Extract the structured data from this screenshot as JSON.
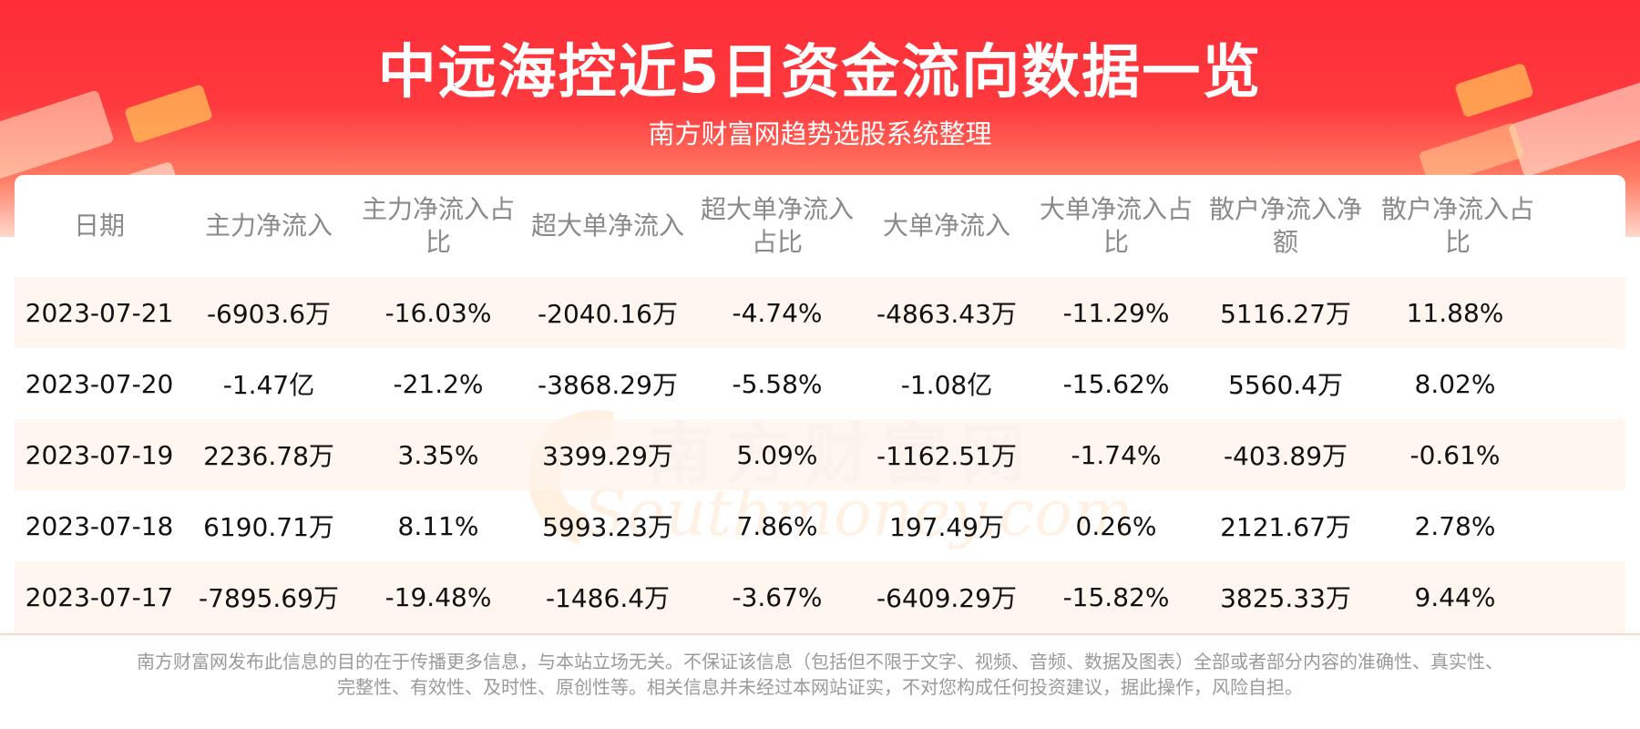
{
  "header": {
    "title": "中远海控近5日资金流向数据一览",
    "subtitle": "南方财富网趋势选股系统整理"
  },
  "watermark": {
    "cn": "南方财富网",
    "en": "Southmoney.com"
  },
  "table": {
    "columns": [
      "日期",
      "主力净流入",
      "主力净流入占比",
      "超大单净流入",
      "超大单净流入占比",
      "大单净流入",
      "大单净流入占比",
      "散户净流入净额",
      "散户净流入占比"
    ],
    "rows": [
      [
        "2023-07-21",
        "-6903.6万",
        "-16.03%",
        "-2040.16万",
        "-4.74%",
        "-4863.43万",
        "-11.29%",
        "5116.27万",
        "11.88%"
      ],
      [
        "2023-07-20",
        "-1.47亿",
        "-21.2%",
        "-3868.29万",
        "-5.58%",
        "-1.08亿",
        "-15.62%",
        "5560.4万",
        "8.02%"
      ],
      [
        "2023-07-19",
        "2236.78万",
        "3.35%",
        "3399.29万",
        "5.09%",
        "-1162.51万",
        "-1.74%",
        "-403.89万",
        "-0.61%"
      ],
      [
        "2023-07-18",
        "6190.71万",
        "8.11%",
        "5993.23万",
        "7.86%",
        "197.49万",
        "0.26%",
        "2121.67万",
        "2.78%"
      ],
      [
        "2023-07-17",
        "-7895.69万",
        "-19.48%",
        "-1486.4万",
        "-3.67%",
        "-6409.29万",
        "-15.82%",
        "3825.33万",
        "9.44%"
      ]
    ]
  },
  "footer": {
    "line1": "南方财富网发布此信息的目的在于传播更多信息，与本站立场无关。不保证该信息（包括但不限于文字、视频、音频、数据及图表）全部或者部分内容的准确性、真实性、",
    "line2": "完整性、有效性、及时性、原创性等。相关信息并未经过本网站证实，不对您构成任何投资建议，据此操作，风险自担。"
  },
  "colors": {
    "banner_red": "#fd2c37",
    "row_stripe": "#fff4ec",
    "header_text": "#8a8a8a"
  }
}
